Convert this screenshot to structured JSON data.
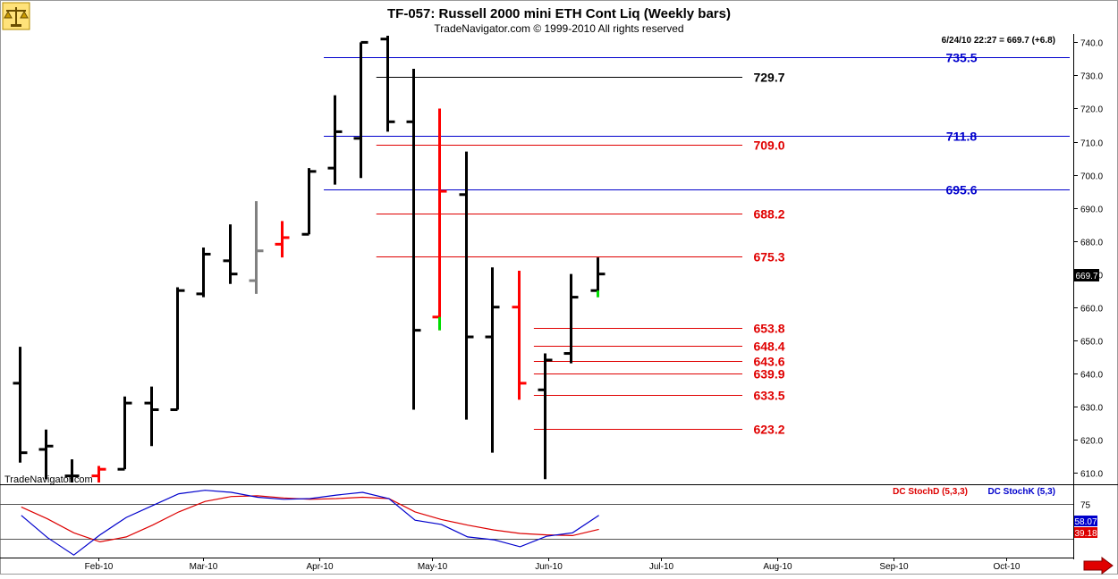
{
  "title": "TF-057:  Russell 2000 mini ETH Cont Liq  (Weekly bars)",
  "copyright": "TradeNavigator.com © 1999-2010 All rights reserved",
  "watermark": "TradeNavigator.com",
  "quote_line": "6/24/10 22:27 = 669.7 (+6.8)",
  "last_price_label": "669.7",
  "icons": {
    "logo": "scales-logo-icon",
    "scroll": "scroll-right-arrow-icon"
  },
  "colors": {
    "up_bar": "#000000",
    "down_bar": "#ff0000",
    "neutral_bar": "#808080",
    "blue_level": "#0000cc",
    "red_level": "#e00000",
    "black_level": "#000000",
    "stoch_d": "#dd0000",
    "stoch_k": "#0000cc",
    "accent_green": "#00dd00"
  },
  "chart_data": [
    {
      "type": "ohlc",
      "title": "TF-057:  Russell 2000 mini ETH Cont Liq  (Weekly bars)",
      "ylim": [
        607,
        742
      ],
      "y_ticks": [
        "740.0",
        "730.0",
        "720.0",
        "710.0",
        "700.0",
        "690.0",
        "680.0",
        "670.0",
        "660.0",
        "650.0",
        "640.0",
        "630.0",
        "620.0",
        "610.0"
      ],
      "y_tick_values": [
        740,
        730,
        720,
        710,
        700,
        690,
        680,
        670,
        660,
        650,
        640,
        630,
        620,
        610
      ],
      "x_tick_labels": [
        "Feb-10",
        "Mar-10",
        "Apr-10",
        "May-10",
        "Jun-10",
        "Jul-10",
        "Aug-10",
        "Sep-10",
        "Oct-10"
      ],
      "x_tick_dates": [
        "2010-02-08",
        "2010-03-08",
        "2010-04-08",
        "2010-05-08",
        "2010-06-08",
        "2010-07-08",
        "2010-08-08",
        "2010-09-08",
        "2010-10-08"
      ],
      "x_range": [
        "2010-01-14",
        "2010-10-25"
      ],
      "bars": [
        {
          "date": "2010-01-18",
          "open": 637,
          "high": 648,
          "low": 613,
          "close": 616,
          "color": "up"
        },
        {
          "date": "2010-01-25",
          "open": 617,
          "high": 623,
          "low": 608,
          "close": 618,
          "color": "up"
        },
        {
          "date": "2010-02-01",
          "open": 609,
          "high": 614,
          "low": 607,
          "close": 609,
          "color": "up"
        },
        {
          "date": "2010-02-08",
          "open": 609,
          "high": 612,
          "low": 607,
          "close": 611,
          "color": "down"
        },
        {
          "date": "2010-02-15",
          "open": 611,
          "high": 633,
          "low": 611,
          "close": 631,
          "color": "up"
        },
        {
          "date": "2010-02-22",
          "open": 631,
          "high": 636,
          "low": 618,
          "close": 629,
          "color": "up"
        },
        {
          "date": "2010-03-01",
          "open": 629,
          "high": 666,
          "low": 629,
          "close": 665,
          "color": "up"
        },
        {
          "date": "2010-03-08",
          "open": 664,
          "high": 678,
          "low": 663,
          "close": 676,
          "color": "up"
        },
        {
          "date": "2010-03-15",
          "open": 674,
          "high": 685,
          "low": 667,
          "close": 670,
          "color": "up"
        },
        {
          "date": "2010-03-22",
          "open": 668,
          "high": 692,
          "low": 664,
          "close": 677,
          "color": "neutral"
        },
        {
          "date": "2010-03-29",
          "open": 679,
          "high": 686,
          "low": 675,
          "close": 681,
          "color": "down"
        },
        {
          "date": "2010-04-05",
          "open": 682,
          "high": 702,
          "low": 682,
          "close": 701,
          "color": "up"
        },
        {
          "date": "2010-04-12",
          "open": 702,
          "high": 724,
          "low": 697,
          "close": 713,
          "color": "up"
        },
        {
          "date": "2010-04-19",
          "open": 711,
          "high": 740,
          "low": 699,
          "close": 740,
          "color": "up"
        },
        {
          "date": "2010-04-26",
          "open": 741,
          "high": 742,
          "low": 713,
          "close": 716,
          "color": "up"
        },
        {
          "date": "2010-05-03",
          "open": 716,
          "high": 732,
          "low": 629,
          "close": 653,
          "color": "up"
        },
        {
          "date": "2010-05-10",
          "open": 657,
          "high": 720,
          "low": 653,
          "close": 695,
          "color": "down"
        },
        {
          "date": "2010-05-17",
          "open": 694,
          "high": 707,
          "low": 626,
          "close": 651,
          "color": "up"
        },
        {
          "date": "2010-05-24",
          "open": 651,
          "high": 672,
          "low": 616,
          "close": 660,
          "color": "up"
        },
        {
          "date": "2010-05-31",
          "open": 660,
          "high": 671,
          "low": 632,
          "close": 637,
          "color": "down"
        },
        {
          "date": "2010-06-07",
          "open": 635,
          "high": 646,
          "low": 608,
          "close": 644,
          "color": "up"
        },
        {
          "date": "2010-06-14",
          "open": 646,
          "high": 670,
          "low": 643,
          "close": 663,
          "color": "up"
        },
        {
          "date": "2010-06-21",
          "open": 665,
          "high": 675,
          "low": 663,
          "close": 670,
          "color": "up"
        }
      ],
      "levels": [
        {
          "value": 735.5,
          "label": "735.5",
          "color": "blue",
          "start": "2010-04-12"
        },
        {
          "value": 729.7,
          "label": "729.7",
          "color": "black",
          "start": "2010-04-26"
        },
        {
          "value": 711.8,
          "label": "711.8",
          "color": "blue",
          "start": "2010-04-12"
        },
        {
          "value": 709.0,
          "label": "709.0",
          "color": "red",
          "start": "2010-04-26"
        },
        {
          "value": 695.6,
          "label": "695.6",
          "color": "blue",
          "start": "2010-04-12"
        },
        {
          "value": 688.2,
          "label": "688.2",
          "color": "red",
          "start": "2010-04-26"
        },
        {
          "value": 675.3,
          "label": "675.3",
          "color": "red",
          "start": "2010-04-26"
        },
        {
          "value": 653.8,
          "label": "653.8",
          "color": "red",
          "start": "2010-06-07"
        },
        {
          "value": 648.4,
          "label": "648.4",
          "color": "red",
          "start": "2010-06-07"
        },
        {
          "value": 643.6,
          "label": "643.6",
          "color": "red",
          "start": "2010-06-07"
        },
        {
          "value": 639.9,
          "label": "639.9",
          "color": "red",
          "start": "2010-06-07"
        },
        {
          "value": 633.5,
          "label": "633.5",
          "color": "red",
          "start": "2010-06-07"
        },
        {
          "value": 623.2,
          "label": "623.2",
          "color": "red",
          "start": "2010-06-07"
        }
      ]
    },
    {
      "type": "line",
      "legend": [
        "DC StochD (5,3,3)",
        "DC StochK (5,3)"
      ],
      "ylim": [
        0,
        100
      ],
      "y_ticks": [
        "75"
      ],
      "y_tick_values": [
        75
      ],
      "reference_lines": [
        75,
        25
      ],
      "last_values": [
        "58.07",
        "39.18"
      ],
      "x": [
        "2010-01-18",
        "2010-01-25",
        "2010-02-01",
        "2010-02-08",
        "2010-02-15",
        "2010-02-22",
        "2010-03-01",
        "2010-03-08",
        "2010-03-15",
        "2010-03-22",
        "2010-03-29",
        "2010-04-05",
        "2010-04-12",
        "2010-04-19",
        "2010-04-26",
        "2010-05-03",
        "2010-05-10",
        "2010-05-17",
        "2010-05-24",
        "2010-05-31",
        "2010-06-07",
        "2010-06-14",
        "2010-06-21"
      ],
      "series": [
        {
          "name": "DC StochD (5,3,3)",
          "color": "red",
          "values": [
            70,
            53,
            33,
            20,
            27,
            44,
            63,
            78,
            85,
            86,
            83,
            81,
            82,
            84,
            82,
            63,
            52,
            44,
            37,
            32,
            30,
            29,
            38
          ]
        },
        {
          "name": "DC StochK (5,3)",
          "color": "blue",
          "values": [
            58,
            26,
            1,
            30,
            55,
            72,
            89,
            94,
            91,
            84,
            81,
            82,
            87,
            91,
            82,
            51,
            45,
            27,
            23,
            13,
            28,
            33,
            58
          ]
        }
      ]
    }
  ]
}
